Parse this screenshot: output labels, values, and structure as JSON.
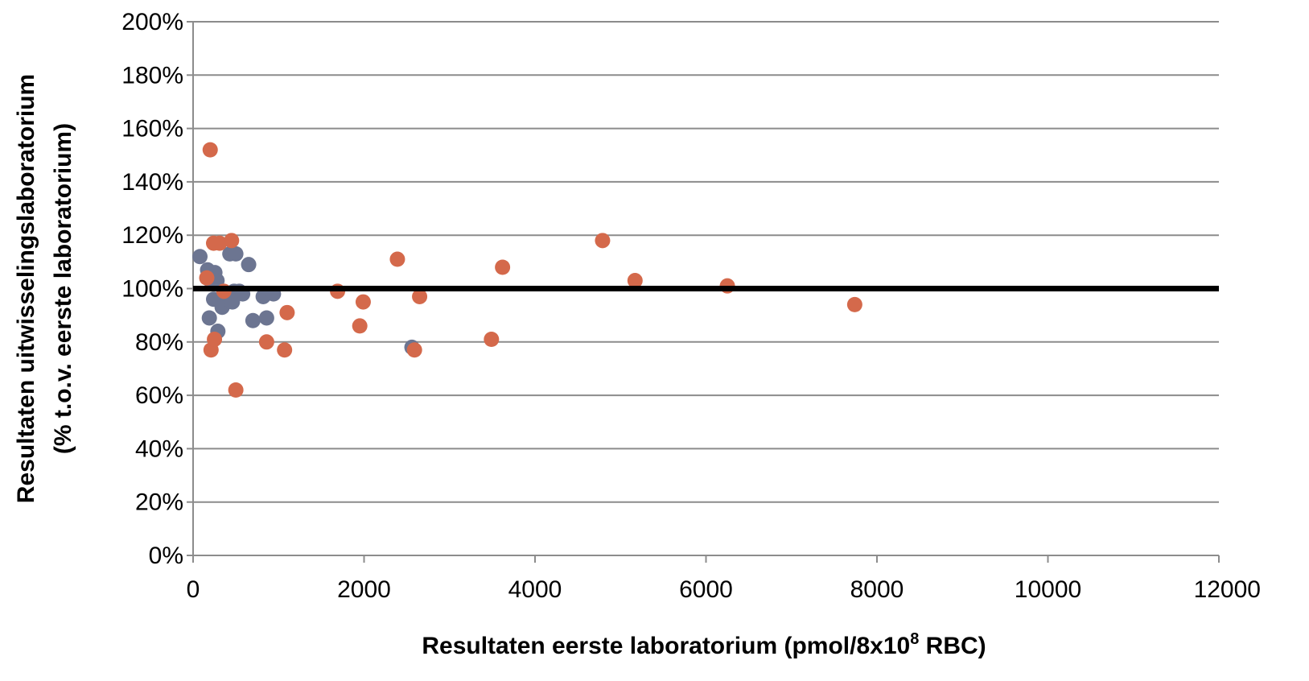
{
  "chart_data": {
    "type": "scatter",
    "title": "",
    "xlabel": "Resultaten eerste laboratorium  (pmol/8x10",
    "xlabel_superscript": "8",
    "xlabel_suffix": " RBC)",
    "ylabel_line1": "Resultaten uitwisselingslaboratorium",
    "ylabel_line2": "(% t.o.v. eerste laboratorium)",
    "xlim": [
      0,
      12000
    ],
    "ylim": [
      0,
      200
    ],
    "x_ticks": [
      0,
      2000,
      4000,
      6000,
      8000,
      10000,
      12000
    ],
    "x_tick_labels": [
      "0",
      "2000",
      "4000",
      "6000",
      "8000",
      "10000",
      "12000"
    ],
    "y_ticks": [
      0,
      20,
      40,
      60,
      80,
      100,
      120,
      140,
      160,
      180,
      200
    ],
    "y_tick_labels": [
      "0%",
      "20%",
      "40%",
      "60%",
      "80%",
      "100%",
      "120%",
      "140%",
      "160%",
      "180%",
      "200%"
    ],
    "grid": true,
    "legend": "none",
    "reference_line": {
      "y": 100,
      "color": "#000000"
    },
    "series": [
      {
        "color": "#6c7591",
        "points": [
          [
            80,
            112
          ],
          [
            170,
            107
          ],
          [
            190,
            89
          ],
          [
            220,
            102
          ],
          [
            240,
            96
          ],
          [
            255,
            106
          ],
          [
            280,
            103
          ],
          [
            290,
            84
          ],
          [
            320,
            95
          ],
          [
            340,
            93
          ],
          [
            380,
            98
          ],
          [
            400,
            96
          ],
          [
            430,
            113
          ],
          [
            460,
            95
          ],
          [
            480,
            99
          ],
          [
            500,
            113
          ],
          [
            540,
            99
          ],
          [
            580,
            98
          ],
          [
            650,
            109
          ],
          [
            700,
            88
          ],
          [
            820,
            97
          ],
          [
            860,
            89
          ],
          [
            940,
            98
          ],
          [
            2560,
            78
          ]
        ]
      },
      {
        "color": "#d4694b",
        "points": [
          [
            160,
            104
          ],
          [
            200,
            152
          ],
          [
            210,
            77
          ],
          [
            240,
            117
          ],
          [
            250,
            81
          ],
          [
            310,
            117
          ],
          [
            360,
            99
          ],
          [
            450,
            118
          ],
          [
            500,
            62
          ],
          [
            860,
            80
          ],
          [
            1070,
            77
          ],
          [
            1100,
            91
          ],
          [
            1690,
            99
          ],
          [
            1950,
            86
          ],
          [
            1990,
            95
          ],
          [
            2390,
            111
          ],
          [
            2590,
            77
          ],
          [
            2650,
            97
          ],
          [
            3490,
            81
          ],
          [
            3620,
            108
          ],
          [
            4790,
            118
          ],
          [
            5170,
            103
          ],
          [
            6250,
            101
          ],
          [
            7740,
            94
          ]
        ]
      }
    ]
  }
}
